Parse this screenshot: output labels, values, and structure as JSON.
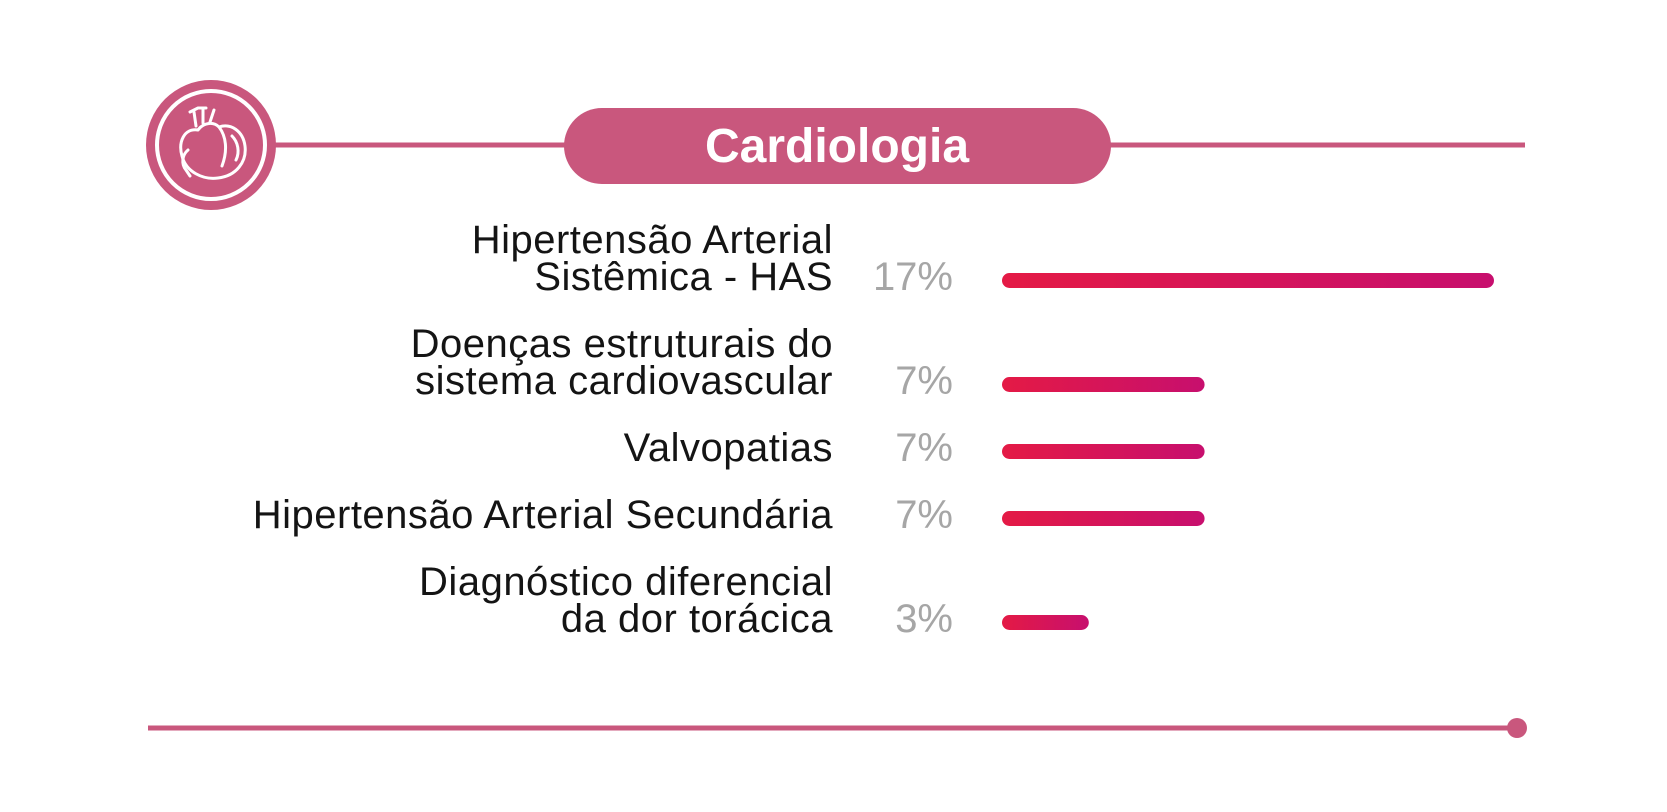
{
  "colors": {
    "accent": "#c9577d",
    "bar_start": "#e41a45",
    "bar_end": "#c70f6e",
    "label": "#141414",
    "value": "#a6a6a6"
  },
  "header": {
    "icon": "heart-icon",
    "title": "Cardiologia"
  },
  "chart_data": {
    "type": "bar",
    "orientation": "horizontal",
    "title": "Cardiologia",
    "categories": [
      [
        "Hipertensão Arterial",
        "Sistêmica - HAS"
      ],
      [
        "Doenças estruturais do",
        "sistema cardiovascular"
      ],
      [
        "Valvopatias"
      ],
      [
        "Hipertensão Arterial Secundária"
      ],
      [
        "Diagnóstico diferencial",
        "da dor torácica"
      ]
    ],
    "values": [
      17,
      7,
      7,
      7,
      3
    ],
    "value_labels": [
      "17%",
      "7%",
      "7%",
      "7%",
      "3%"
    ],
    "unit": "%",
    "xlim": [
      0,
      17
    ],
    "grid": false,
    "legend": "none"
  }
}
